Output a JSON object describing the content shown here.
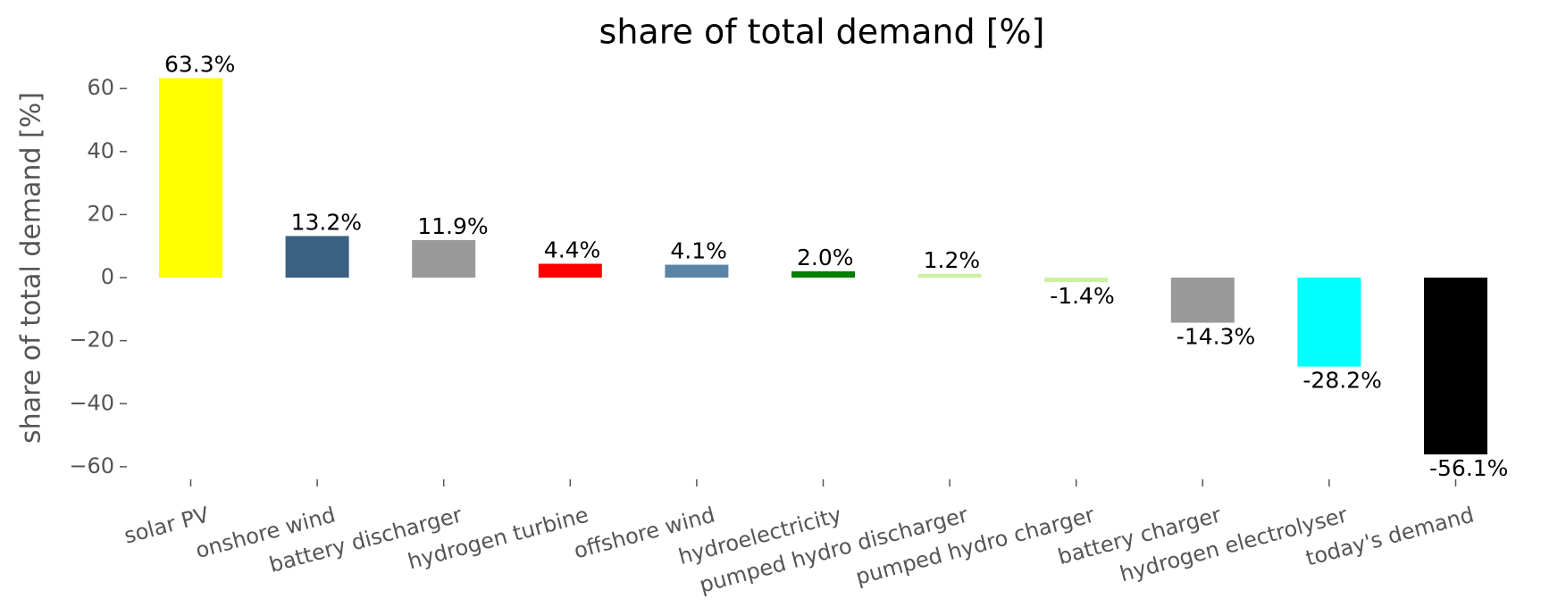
{
  "chart_data": {
    "type": "bar",
    "title": "share of total demand [%]",
    "ylabel": "share of total demand [%]",
    "categories": [
      "solar PV",
      "onshore wind",
      "battery discharger",
      "hydrogen turbine",
      "offshore wind",
      "hydroelectricity",
      "pumped hydro discharger",
      "pumped hydro charger",
      "battery charger",
      "hydrogen electrolyser",
      "today's demand"
    ],
    "values": [
      63.3,
      13.2,
      11.9,
      4.4,
      4.1,
      2.0,
      1.2,
      -1.4,
      -14.3,
      -28.2,
      -56.1
    ],
    "value_labels": [
      "63.3%",
      "13.2%",
      "11.9%",
      "4.4%",
      "4.1%",
      "2.0%",
      "1.2%",
      "-1.4%",
      "-14.3%",
      "-28.2%",
      "-56.1%"
    ],
    "colors": [
      "#ffff00",
      "#3b6182",
      "#999999",
      "#ff0000",
      "#5b85a6",
      "#008000",
      "#ccf0a0",
      "#ccf0a0",
      "#999999",
      "#00ffff",
      "#000000"
    ],
    "ylim": [
      -64,
      66
    ],
    "yticks": [
      {
        "value": -60,
        "label": "−60"
      },
      {
        "value": -40,
        "label": "−40"
      },
      {
        "value": -20,
        "label": "−20"
      },
      0,
      20,
      40,
      60
    ]
  }
}
